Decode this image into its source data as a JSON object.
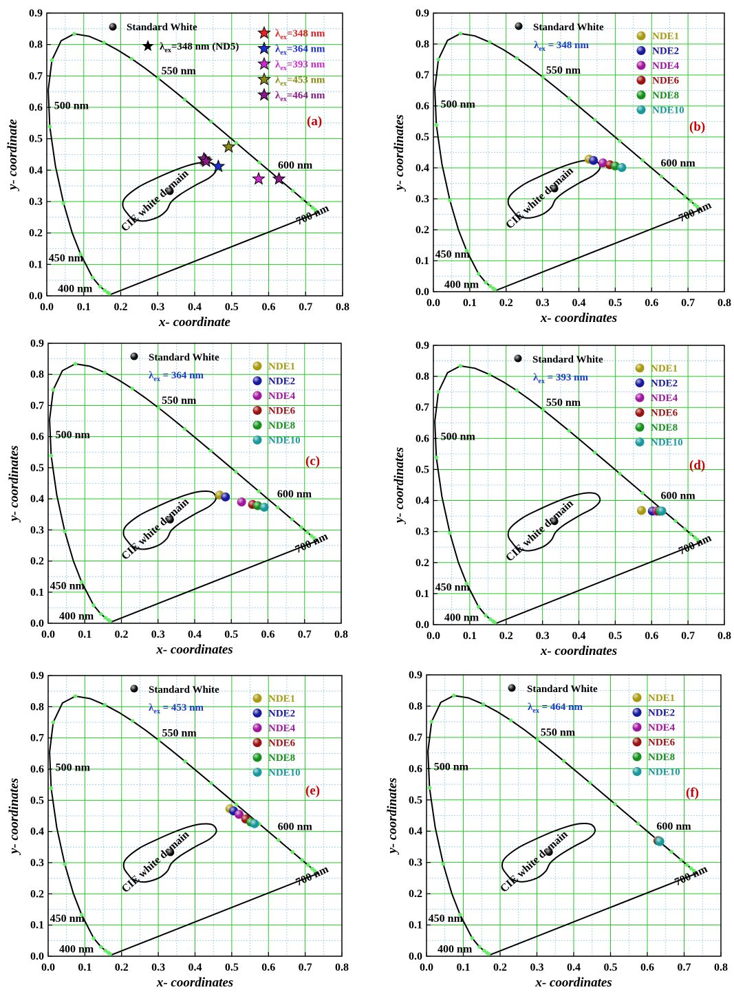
{
  "colors": {
    "grid": "#22cc22",
    "grid_minor": "#88c8ee",
    "locus_point": "#66ee66",
    "panel_label": "#cc0000",
    "excitation_label": "#1a3ad0",
    "NDE1": "#a89a10",
    "NDE2": "#1a1a9e",
    "NDE4": "#a0169e",
    "NDE6": "#9a1212",
    "NDE8": "#15901a",
    "NDE10": "#18989a",
    "star_348": "#e82020",
    "star_364": "#1c2fd0",
    "star_393": "#d028d0",
    "star_453": "#8a8a12",
    "star_464": "#8a1a8a"
  },
  "chart_data": [
    {
      "type": "scatter",
      "panel_label": "(a)",
      "xlabel": "x- coordinate",
      "ylabel": "y- coordinate",
      "xlim": [
        0,
        0.8
      ],
      "ylim": [
        0,
        0.9
      ],
      "xticks": [
        "0.0",
        "0.1",
        "0.2",
        "0.3",
        "0.4",
        "0.5",
        "0.6",
        "0.7",
        "0.8"
      ],
      "yticks": [
        "0.0",
        "0.1",
        "0.2",
        "0.3",
        "0.4",
        "0.5",
        "0.6",
        "0.7",
        "0.8",
        "0.9"
      ],
      "grid": true,
      "wavelength_labels": [
        "400 nm",
        "450 nm",
        "500 nm",
        "550 nm",
        "600 nm",
        "700 nm"
      ],
      "domain_label": "CIE white domain",
      "standard_white": {
        "label": "Standard White",
        "x": 0.333,
        "y": 0.333
      },
      "excitation": "",
      "reference_star": {
        "label": "λex=348 nm (ND5)",
        "x": 0.27,
        "y": 0.79
      },
      "legend": [
        {
          "label": "λex=348 nm",
          "color_key": "star_348"
        },
        {
          "label": "λex=364 nm",
          "color_key": "star_364"
        },
        {
          "label": "λex=393 nm",
          "color_key": "star_393"
        },
        {
          "label": "λex=453 nm",
          "color_key": "star_453"
        },
        {
          "label": "λex=464 nm",
          "color_key": "star_464"
        }
      ],
      "series": [
        {
          "name": "λex=348 nm",
          "color_key": "star_348",
          "marker": "star",
          "points": [
            [
              0.428,
              0.432
            ]
          ]
        },
        {
          "name": "λex=364 nm",
          "color_key": "star_364",
          "marker": "star",
          "points": [
            [
              0.464,
              0.412
            ]
          ]
        },
        {
          "name": "λex=393 nm",
          "color_key": "star_393",
          "marker": "star",
          "points": [
            [
              0.573,
              0.372
            ]
          ]
        },
        {
          "name": "λex=453 nm",
          "color_key": "star_453",
          "marker": "star",
          "points": [
            [
              0.492,
              0.474
            ]
          ]
        },
        {
          "name": "λex=464 nm",
          "color_key": "star_464",
          "marker": "star",
          "points": [
            [
              0.628,
              0.372
            ],
            [
              0.425,
              0.436
            ],
            [
              0.431,
              0.428
            ]
          ]
        }
      ]
    },
    {
      "type": "scatter",
      "panel_label": "(b)",
      "xlabel": "x- coordinates",
      "ylabel": "y- coordinates",
      "xlim": [
        0,
        0.8
      ],
      "ylim": [
        0,
        0.9
      ],
      "xticks": [
        "0.0",
        "0.1",
        "0.2",
        "0.3",
        "0.4",
        "0.5",
        "0.6",
        "0.7",
        "0.8"
      ],
      "yticks": [
        "0.0",
        "0.1",
        "0.2",
        "0.3",
        "0.4",
        "0.5",
        "0.6",
        "0.7",
        "0.8",
        "0.9"
      ],
      "grid": true,
      "wavelength_labels": [
        "400 nm",
        "450 nm",
        "500 nm",
        "550 nm",
        "600 nm",
        "700 nm"
      ],
      "domain_label": "CIE white domain",
      "standard_white": {
        "label": "Standard White",
        "x": 0.333,
        "y": 0.333
      },
      "excitation": "= 348 nm",
      "legend": [
        {
          "label": "NDE1",
          "color_key": "NDE1"
        },
        {
          "label": "NDE2",
          "color_key": "NDE2"
        },
        {
          "label": "NDE4",
          "color_key": "NDE4"
        },
        {
          "label": "NDE6",
          "color_key": "NDE6"
        },
        {
          "label": "NDE8",
          "color_key": "NDE8"
        },
        {
          "label": "NDE10",
          "color_key": "NDE10"
        }
      ],
      "series": [
        {
          "name": "NDE1",
          "color_key": "NDE1",
          "marker": "ball",
          "points": [
            [
              0.428,
              0.428
            ]
          ]
        },
        {
          "name": "NDE2",
          "color_key": "NDE2",
          "marker": "ball",
          "points": [
            [
              0.44,
              0.424
            ]
          ]
        },
        {
          "name": "NDE4",
          "color_key": "NDE4",
          "marker": "ball",
          "points": [
            [
              0.466,
              0.416
            ]
          ]
        },
        {
          "name": "NDE6",
          "color_key": "NDE6",
          "marker": "ball",
          "points": [
            [
              0.485,
              0.41
            ]
          ]
        },
        {
          "name": "NDE8",
          "color_key": "NDE8",
          "marker": "ball",
          "points": [
            [
              0.5,
              0.406
            ]
          ]
        },
        {
          "name": "NDE10",
          "color_key": "NDE10",
          "marker": "ball",
          "points": [
            [
              0.518,
              0.401
            ]
          ]
        }
      ]
    },
    {
      "type": "scatter",
      "panel_label": "(c)",
      "xlabel": "x- coordinates",
      "ylabel": "y- coordinates",
      "xlim": [
        0,
        0.8
      ],
      "ylim": [
        0,
        0.9
      ],
      "xticks": [
        "0.0",
        "0.1",
        "0.2",
        "0.3",
        "0.4",
        "0.5",
        "0.6",
        "0.7",
        "0.8"
      ],
      "yticks": [
        "0.0",
        "0.1",
        "0.2",
        "0.3",
        "0.4",
        "0.5",
        "0.6",
        "0.7",
        "0.8",
        "0.9"
      ],
      "grid": true,
      "wavelength_labels": [
        "400 nm",
        "450 nm",
        "500 nm",
        "550 nm",
        "600 nm",
        "700 nm"
      ],
      "domain_label": "CIE white domain",
      "standard_white": {
        "label": "Standard White",
        "x": 0.333,
        "y": 0.333
      },
      "excitation": "= 364 nm",
      "legend": [
        {
          "label": "NDE1",
          "color_key": "NDE1"
        },
        {
          "label": "NDE2",
          "color_key": "NDE2"
        },
        {
          "label": "NDE4",
          "color_key": "NDE4"
        },
        {
          "label": "NDE6",
          "color_key": "NDE6"
        },
        {
          "label": "NDE8",
          "color_key": "NDE8"
        },
        {
          "label": "NDE10",
          "color_key": "NDE10"
        }
      ],
      "series": [
        {
          "name": "NDE1",
          "color_key": "NDE1",
          "marker": "ball",
          "points": [
            [
              0.468,
              0.412
            ]
          ]
        },
        {
          "name": "NDE2",
          "color_key": "NDE2",
          "marker": "ball",
          "points": [
            [
              0.484,
              0.406
            ]
          ]
        },
        {
          "name": "NDE4",
          "color_key": "NDE4",
          "marker": "ball",
          "points": [
            [
              0.528,
              0.39
            ]
          ]
        },
        {
          "name": "NDE6",
          "color_key": "NDE6",
          "marker": "ball",
          "points": [
            [
              0.558,
              0.382
            ]
          ]
        },
        {
          "name": "NDE8",
          "color_key": "NDE8",
          "marker": "ball",
          "points": [
            [
              0.572,
              0.378
            ]
          ]
        },
        {
          "name": "NDE10",
          "color_key": "NDE10",
          "marker": "ball",
          "points": [
            [
              0.59,
              0.373
            ]
          ]
        }
      ]
    },
    {
      "type": "scatter",
      "panel_label": "(d)",
      "xlabel": "x- coordinates",
      "ylabel": "y- coordinates",
      "xlim": [
        0,
        0.8
      ],
      "ylim": [
        0,
        0.9
      ],
      "xticks": [
        "0.0",
        "0.1",
        "0.2",
        "0.3",
        "0.4",
        "0.5",
        "0.6",
        "0.7",
        "0.8"
      ],
      "yticks": [
        "0.0",
        "0.1",
        "0.2",
        "0.3",
        "0.4",
        "0.5",
        "0.6",
        "0.7",
        "0.8",
        "0.9"
      ],
      "grid": true,
      "wavelength_labels": [
        "400 nm",
        "450 nm",
        "500 nm",
        "550 nm",
        "600 nm",
        "700 nm"
      ],
      "domain_label": "CIE white domain",
      "standard_white": {
        "label": "Standard White",
        "x": 0.333,
        "y": 0.333
      },
      "excitation": "= 393 nm",
      "legend": [
        {
          "label": "NDE1",
          "color_key": "NDE1"
        },
        {
          "label": "NDE2",
          "color_key": "NDE2"
        },
        {
          "label": "NDE4",
          "color_key": "NDE4"
        },
        {
          "label": "NDE6",
          "color_key": "NDE6"
        },
        {
          "label": "NDE8",
          "color_key": "NDE8"
        },
        {
          "label": "NDE10",
          "color_key": "NDE10"
        }
      ],
      "series": [
        {
          "name": "NDE1",
          "color_key": "NDE1",
          "marker": "ball",
          "points": [
            [
              0.572,
              0.368
            ]
          ]
        },
        {
          "name": "NDE2",
          "color_key": "NDE2",
          "marker": "ball",
          "points": [
            [
              0.602,
              0.366
            ]
          ]
        },
        {
          "name": "NDE4",
          "color_key": "NDE4",
          "marker": "ball",
          "points": [
            [
              0.614,
              0.366
            ]
          ]
        },
        {
          "name": "NDE6",
          "color_key": "NDE6",
          "marker": "ball",
          "points": [
            [
              0.62,
              0.366
            ]
          ]
        },
        {
          "name": "NDE8",
          "color_key": "NDE8",
          "marker": "ball",
          "points": [
            [
              0.624,
              0.366
            ]
          ]
        },
        {
          "name": "NDE10",
          "color_key": "NDE10",
          "marker": "ball",
          "points": [
            [
              0.628,
              0.366
            ]
          ]
        }
      ]
    },
    {
      "type": "scatter",
      "panel_label": "(e)",
      "xlabel": "x- coordinates",
      "ylabel": "y- coordinates",
      "xlim": [
        0,
        0.8
      ],
      "ylim": [
        0,
        0.9
      ],
      "xticks": [
        "0.0",
        "0.1",
        "0.2",
        "0.3",
        "0.4",
        "0.5",
        "0.6",
        "0.7",
        "0.8"
      ],
      "yticks": [
        "0.0",
        "0.1",
        "0.2",
        "0.3",
        "0.4",
        "0.5",
        "0.6",
        "0.7",
        "0.8",
        "0.9"
      ],
      "grid": true,
      "wavelength_labels": [
        "400 nm",
        "450 nm",
        "500 nm",
        "550 nm",
        "600 nm",
        "700 nm"
      ],
      "domain_label": "CIE white domain",
      "standard_white": {
        "label": "Standard White",
        "x": 0.333,
        "y": 0.333
      },
      "excitation": "= 453 nm",
      "legend": [
        {
          "label": "NDE1",
          "color_key": "NDE1"
        },
        {
          "label": "NDE2",
          "color_key": "NDE2"
        },
        {
          "label": "NDE4",
          "color_key": "NDE4"
        },
        {
          "label": "NDE6",
          "color_key": "NDE6"
        },
        {
          "label": "NDE8",
          "color_key": "NDE8"
        },
        {
          "label": "NDE10",
          "color_key": "NDE10"
        }
      ],
      "series": [
        {
          "name": "NDE1",
          "color_key": "NDE1",
          "marker": "ball",
          "points": [
            [
              0.495,
              0.473
            ]
          ]
        },
        {
          "name": "NDE2",
          "color_key": "NDE2",
          "marker": "ball",
          "points": [
            [
              0.505,
              0.466
            ]
          ]
        },
        {
          "name": "NDE4",
          "color_key": "NDE4",
          "marker": "ball",
          "points": [
            [
              0.52,
              0.455
            ]
          ]
        },
        {
          "name": "NDE6",
          "color_key": "NDE6",
          "marker": "ball",
          "points": [
            [
              0.538,
              0.44
            ]
          ]
        },
        {
          "name": "NDE8",
          "color_key": "NDE8",
          "marker": "ball",
          "points": [
            [
              0.552,
              0.43
            ]
          ]
        },
        {
          "name": "NDE10",
          "color_key": "NDE10",
          "marker": "ball",
          "points": [
            [
              0.562,
              0.425
            ]
          ]
        }
      ]
    },
    {
      "type": "scatter",
      "panel_label": "(f)",
      "xlabel": "x- coordinates",
      "ylabel": "y- coordinates",
      "xlim": [
        0,
        0.8
      ],
      "ylim": [
        0,
        0.9
      ],
      "xticks": [
        "0.0",
        "0.1",
        "0.2",
        "0.3",
        "0.4",
        "0.5",
        "0.6",
        "0.7",
        "0.8"
      ],
      "yticks": [
        "0.0",
        "0.1",
        "0.2",
        "0.3",
        "0.4",
        "0.5",
        "0.6",
        "0.7",
        "0.8",
        "0.9"
      ],
      "grid": true,
      "wavelength_labels": [
        "400 nm",
        "450 nm",
        "500 nm",
        "550 nm",
        "600 nm",
        "700 nm"
      ],
      "domain_label": "CIE white domain",
      "standard_white": {
        "label": "Standard White",
        "x": 0.333,
        "y": 0.333
      },
      "excitation": "= 464 nm",
      "legend": [
        {
          "label": "NDE1",
          "color_key": "NDE1"
        },
        {
          "label": "NDE2",
          "color_key": "NDE2"
        },
        {
          "label": "NDE4",
          "color_key": "NDE4"
        },
        {
          "label": "NDE6",
          "color_key": "NDE6"
        },
        {
          "label": "NDE8",
          "color_key": "NDE8"
        },
        {
          "label": "NDE10",
          "color_key": "NDE10"
        }
      ],
      "series": [
        {
          "name": "NDE1",
          "color_key": "NDE1",
          "marker": "ball",
          "points": [
            [
              0.628,
              0.37
            ]
          ]
        },
        {
          "name": "NDE2",
          "color_key": "NDE2",
          "marker": "ball",
          "points": [
            [
              0.63,
              0.369
            ]
          ]
        },
        {
          "name": "NDE4",
          "color_key": "NDE4",
          "marker": "ball",
          "points": [
            [
              0.631,
              0.369
            ]
          ]
        },
        {
          "name": "NDE6",
          "color_key": "NDE6",
          "marker": "ball",
          "points": [
            [
              0.632,
              0.368
            ]
          ]
        },
        {
          "name": "NDE8",
          "color_key": "NDE8",
          "marker": "ball",
          "points": [
            [
              0.633,
              0.368
            ]
          ]
        },
        {
          "name": "NDE10",
          "color_key": "NDE10",
          "marker": "ball",
          "points": [
            [
              0.634,
              0.367
            ]
          ]
        }
      ]
    }
  ]
}
